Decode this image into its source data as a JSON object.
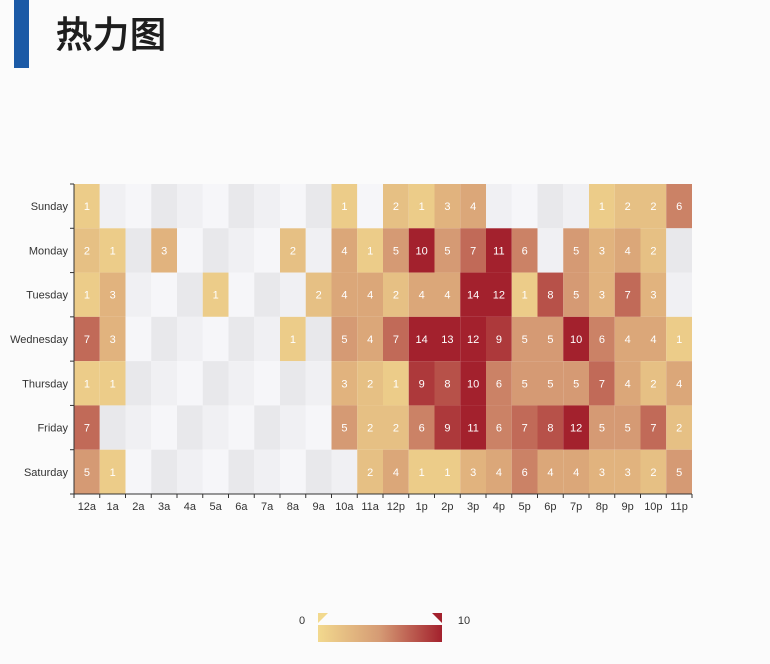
{
  "page": {
    "title": "热力图"
  },
  "colors": {
    "accent": "#1b5aa6",
    "low": "#f2d98e",
    "mid": "#d59a74",
    "high": "#a3212d",
    "empty": "#e6e6ea"
  },
  "chart_data": {
    "type": "heatmap",
    "x_categories": [
      "12a",
      "1a",
      "2a",
      "3a",
      "4a",
      "5a",
      "6a",
      "7a",
      "8a",
      "9a",
      "10a",
      "11a",
      "12p",
      "1p",
      "2p",
      "3p",
      "4p",
      "5p",
      "6p",
      "7p",
      "8p",
      "9p",
      "10p",
      "11p"
    ],
    "y_categories": [
      "Sunday",
      "Monday",
      "Tuesday",
      "Wednesday",
      "Thursday",
      "Friday",
      "Saturday"
    ],
    "values": [
      [
        1,
        0,
        0,
        0,
        0,
        0,
        0,
        0,
        0,
        0,
        1,
        0,
        2,
        1,
        3,
        4,
        0,
        0,
        0,
        0,
        1,
        2,
        2,
        6
      ],
      [
        2,
        1,
        0,
        3,
        0,
        0,
        0,
        0,
        2,
        0,
        4,
        1,
        5,
        10,
        5,
        7,
        11,
        6,
        0,
        5,
        3,
        4,
        2,
        0
      ],
      [
        1,
        3,
        0,
        0,
        0,
        1,
        0,
        0,
        0,
        2,
        4,
        4,
        2,
        4,
        4,
        14,
        12,
        1,
        8,
        5,
        3,
        7,
        3,
        0
      ],
      [
        7,
        3,
        0,
        0,
        0,
        0,
        0,
        0,
        1,
        0,
        5,
        4,
        7,
        14,
        13,
        12,
        9,
        5,
        5,
        10,
        6,
        4,
        4,
        1
      ],
      [
        1,
        1,
        0,
        0,
        0,
        0,
        0,
        0,
        0,
        0,
        3,
        2,
        1,
        9,
        8,
        10,
        6,
        5,
        5,
        5,
        7,
        4,
        2,
        4
      ],
      [
        7,
        0,
        0,
        0,
        0,
        0,
        0,
        0,
        0,
        0,
        5,
        2,
        2,
        6,
        9,
        11,
        6,
        7,
        8,
        12,
        5,
        5,
        7,
        2
      ],
      [
        5,
        1,
        0,
        0,
        0,
        0,
        0,
        0,
        0,
        0,
        0,
        2,
        4,
        1,
        1,
        3,
        4,
        6,
        4,
        4,
        3,
        3,
        2,
        5
      ]
    ],
    "visual_map": {
      "min": 0,
      "max": 10,
      "min_label": "0",
      "max_label": "10",
      "orientation": "horizontal",
      "placement": "bottom-center"
    },
    "legend": false,
    "grid": false
  }
}
